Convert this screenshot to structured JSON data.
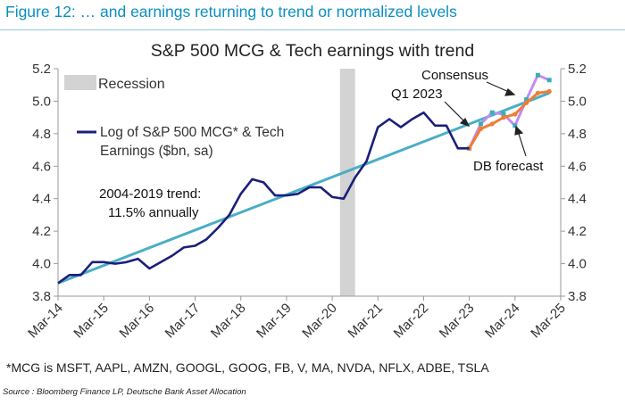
{
  "figure_title": "Figure 12: … and earnings returning to trend or normalized levels",
  "footnote": "*MCG is MSFT, AAPL, AMZN, GOOGL, GOOG, FB, V, MA, NVDA, NFLX, ADBE, TSLA",
  "source": "Source : Bloomberg Finance LP, Deutsche Bank Asset Allocation",
  "colors": {
    "figure_title": "#0b8fbf",
    "historical_line": "#1a1f7a",
    "trend_line": "#4aaec6",
    "consensus": "#ee7d35",
    "db_forecast": "#c58af0",
    "forecast_marker": "#3aaeb6",
    "recession": "#d3d3d3"
  },
  "chart_data": {
    "type": "line",
    "title": "S&P 500 MCG & Tech earnings with trend",
    "xlabel": "",
    "ylabel": "",
    "ylim": [
      3.8,
      5.2
    ],
    "yticks": [
      "3.8",
      "4.0",
      "4.2",
      "4.4",
      "4.6",
      "4.8",
      "5.0",
      "5.2"
    ],
    "xticks": [
      "Mar-14",
      "Mar-15",
      "Mar-16",
      "Mar-17",
      "Mar-18",
      "Mar-19",
      "Mar-20",
      "Mar-21",
      "Mar-22",
      "Mar-23",
      "Mar-24",
      "Mar-25"
    ],
    "xlim": [
      2014.0,
      2025.0
    ],
    "legend": {
      "recession": "Recession",
      "series_line1": "Log of S&P 500 MCG* & Tech",
      "series_line2": "Earnings ($bn, sa)"
    },
    "annotations": {
      "trend_line1": "2004-2019 trend:",
      "trend_line2": "11.5% annually",
      "q1_2023": "Q1 2023",
      "consensus": "Consensus",
      "db_forecast": "DB forecast"
    },
    "recession": [
      2020.17,
      2020.5
    ],
    "series": [
      {
        "name": "Log of S&P 500 MCG* & Tech Earnings ($bn, sa)",
        "x": [
          2014.0,
          2014.25,
          2014.5,
          2014.75,
          2015.0,
          2015.25,
          2015.5,
          2015.75,
          2016.0,
          2016.25,
          2016.5,
          2016.75,
          2017.0,
          2017.25,
          2017.5,
          2017.75,
          2018.0,
          2018.25,
          2018.5,
          2018.75,
          2019.0,
          2019.25,
          2019.5,
          2019.75,
          2020.0,
          2020.25,
          2020.5,
          2020.75,
          2021.0,
          2021.25,
          2021.5,
          2021.75,
          2022.0,
          2022.25,
          2022.5,
          2022.75,
          2023.0
        ],
        "values": [
          3.88,
          3.93,
          3.93,
          4.01,
          4.01,
          4.0,
          4.01,
          4.03,
          3.97,
          4.01,
          4.05,
          4.1,
          4.11,
          4.15,
          4.22,
          4.3,
          4.43,
          4.52,
          4.5,
          4.42,
          4.42,
          4.43,
          4.47,
          4.47,
          4.41,
          4.4,
          4.53,
          4.63,
          4.84,
          4.89,
          4.84,
          4.89,
          4.93,
          4.85,
          4.85,
          4.71,
          4.71
        ]
      },
      {
        "name": "2004-2019 trend",
        "x": [
          2014.0,
          2024.75
        ],
        "values": [
          3.88,
          5.05
        ]
      },
      {
        "name": "Consensus",
        "x": [
          2023.0,
          2023.25,
          2023.5,
          2023.75,
          2024.0,
          2024.25,
          2024.5,
          2024.75
        ],
        "values": [
          4.71,
          4.83,
          4.86,
          4.9,
          4.92,
          4.99,
          5.05,
          5.06
        ]
      },
      {
        "name": "DB forecast",
        "x": [
          2023.0,
          2023.25,
          2023.5,
          2023.75,
          2024.0,
          2024.25,
          2024.5,
          2024.75
        ],
        "values": [
          4.71,
          4.86,
          4.93,
          4.92,
          4.85,
          5.01,
          5.16,
          5.13
        ]
      }
    ]
  }
}
